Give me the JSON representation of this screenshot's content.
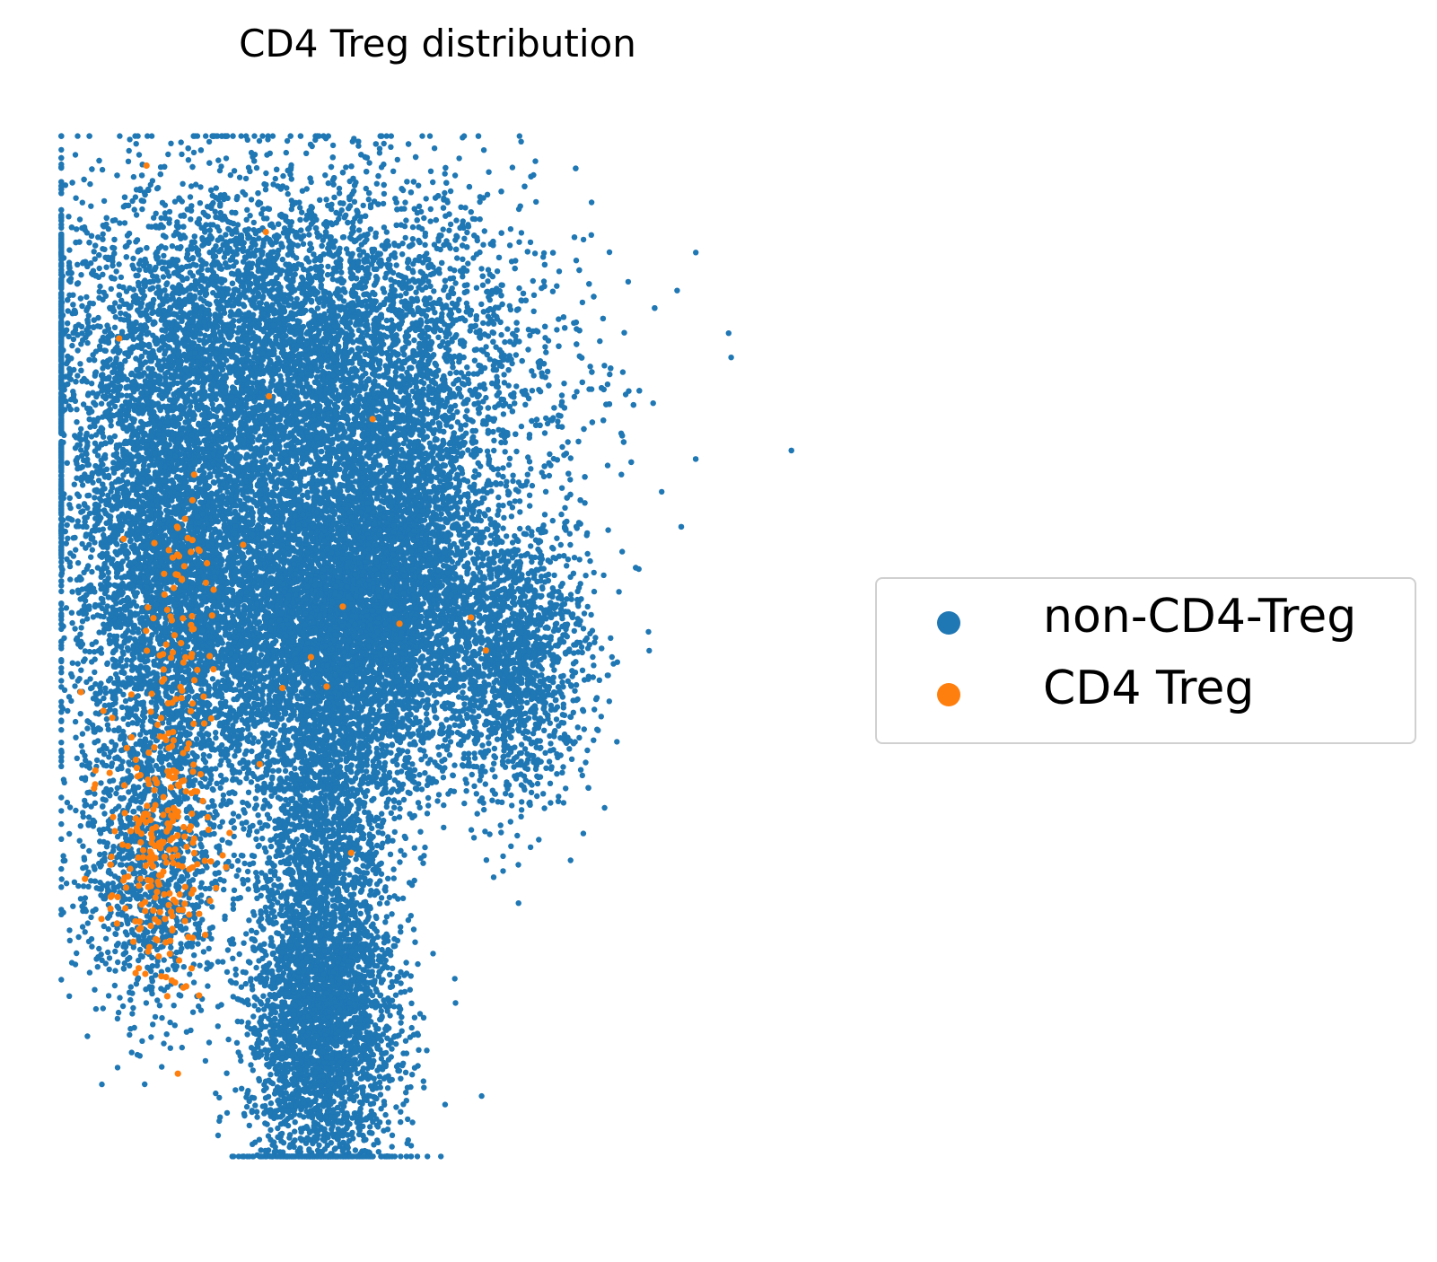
{
  "chart_data": {
    "type": "scatter",
    "title": "CD4 Treg distribution",
    "xlabel": "",
    "ylabel": "",
    "axes_visible": false,
    "grid": false,
    "legend_placement": "right, vertically centered, outside plot",
    "series": [
      {
        "name": "non-CD4-Treg",
        "color": "#1f77b4",
        "note": "dense point cloud; points are not individually readable",
        "regions": [
          {
            "role": "upper main mass",
            "cx": 0.3,
            "cy": 0.77,
            "sx": 0.17,
            "sy": 0.09,
            "n": 9000
          },
          {
            "role": "left body",
            "cx": 0.16,
            "cy": 0.57,
            "sx": 0.07,
            "sy": 0.1,
            "n": 3500
          },
          {
            "role": "center body",
            "cx": 0.36,
            "cy": 0.52,
            "sx": 0.09,
            "sy": 0.08,
            "n": 5000
          },
          {
            "role": "right body",
            "cx": 0.46,
            "cy": 0.58,
            "sx": 0.06,
            "sy": 0.09,
            "n": 2500
          },
          {
            "role": "far-right arm",
            "cx": 0.62,
            "cy": 0.49,
            "sx": 0.05,
            "sy": 0.07,
            "n": 1500
          },
          {
            "role": "lower-left tail",
            "cx": 0.13,
            "cy": 0.3,
            "sx": 0.05,
            "sy": 0.08,
            "n": 1200
          },
          {
            "role": "bottom cluster",
            "cx": 0.36,
            "cy": 0.15,
            "sx": 0.05,
            "sy": 0.09,
            "n": 3500
          },
          {
            "role": "bridge",
            "cx": 0.36,
            "cy": 0.35,
            "sx": 0.05,
            "sy": 0.05,
            "n": 700
          }
        ]
      },
      {
        "name": "CD4 Treg",
        "color": "#ff7f0e",
        "note": "sparse points mostly along the lower-left band",
        "regions": [
          {
            "role": "lower-left band",
            "cx": 0.14,
            "cy": 0.3,
            "sx": 0.035,
            "sy": 0.06,
            "n": 230
          },
          {
            "role": "left-center streak",
            "cx": 0.17,
            "cy": 0.52,
            "sx": 0.02,
            "sy": 0.07,
            "n": 70
          },
          {
            "role": "scattered",
            "cx": 0.3,
            "cy": 0.55,
            "sx": 0.15,
            "sy": 0.18,
            "n": 25
          }
        ]
      }
    ],
    "xlim": [
      0,
      1
    ],
    "ylim": [
      0,
      1
    ]
  }
}
